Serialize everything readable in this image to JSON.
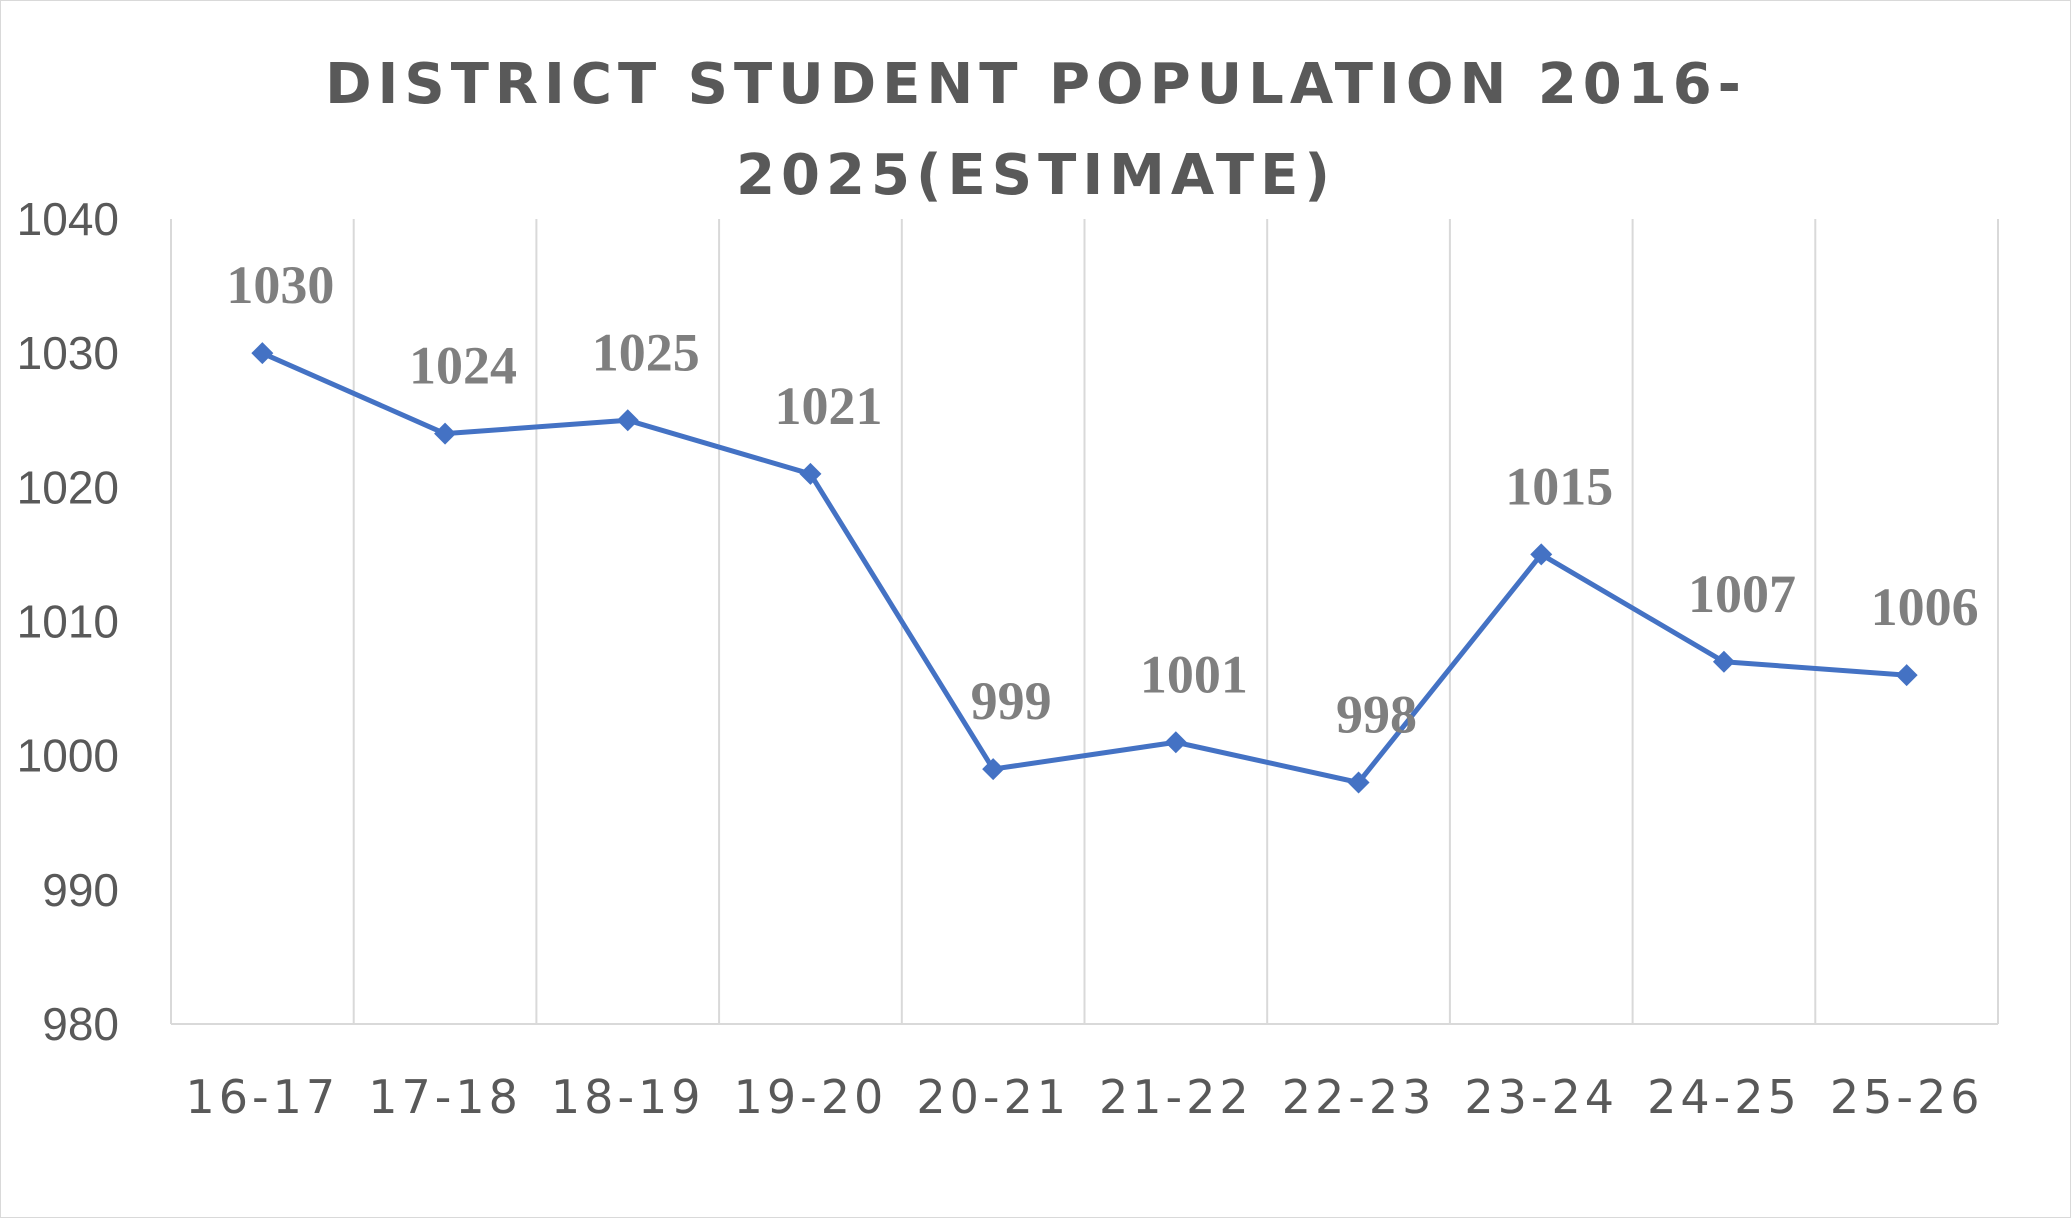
{
  "chart_data": {
    "type": "line",
    "title_lines": [
      "DISTRICT STUDENT POPULATION 2016-",
      "2025(ESTIMATE)"
    ],
    "categories": [
      "16-17",
      "17-18",
      "18-19",
      "19-20",
      "20-21",
      "21-22",
      "22-23",
      "23-24",
      "24-25",
      "25-26"
    ],
    "series": [
      {
        "values": [
          1030,
          1024,
          1025,
          1021,
          999,
          1001,
          998,
          1015,
          1007,
          1006
        ],
        "color": "#4472c4",
        "marker": "diamond"
      }
    ],
    "data_labels": [
      "1030",
      "1024",
      "1025",
      "1021",
      "999",
      "1001",
      "998",
      "1015",
      "1007",
      "1006"
    ],
    "ylim": [
      980,
      1040
    ],
    "y_ticks": [
      980,
      990,
      1000,
      1010,
      1020,
      1030,
      1040
    ],
    "y_tick_labels": [
      "980",
      "990",
      "1000",
      "1010",
      "1020",
      "1030",
      "1040"
    ],
    "grid": "vertical",
    "legend": "none"
  }
}
